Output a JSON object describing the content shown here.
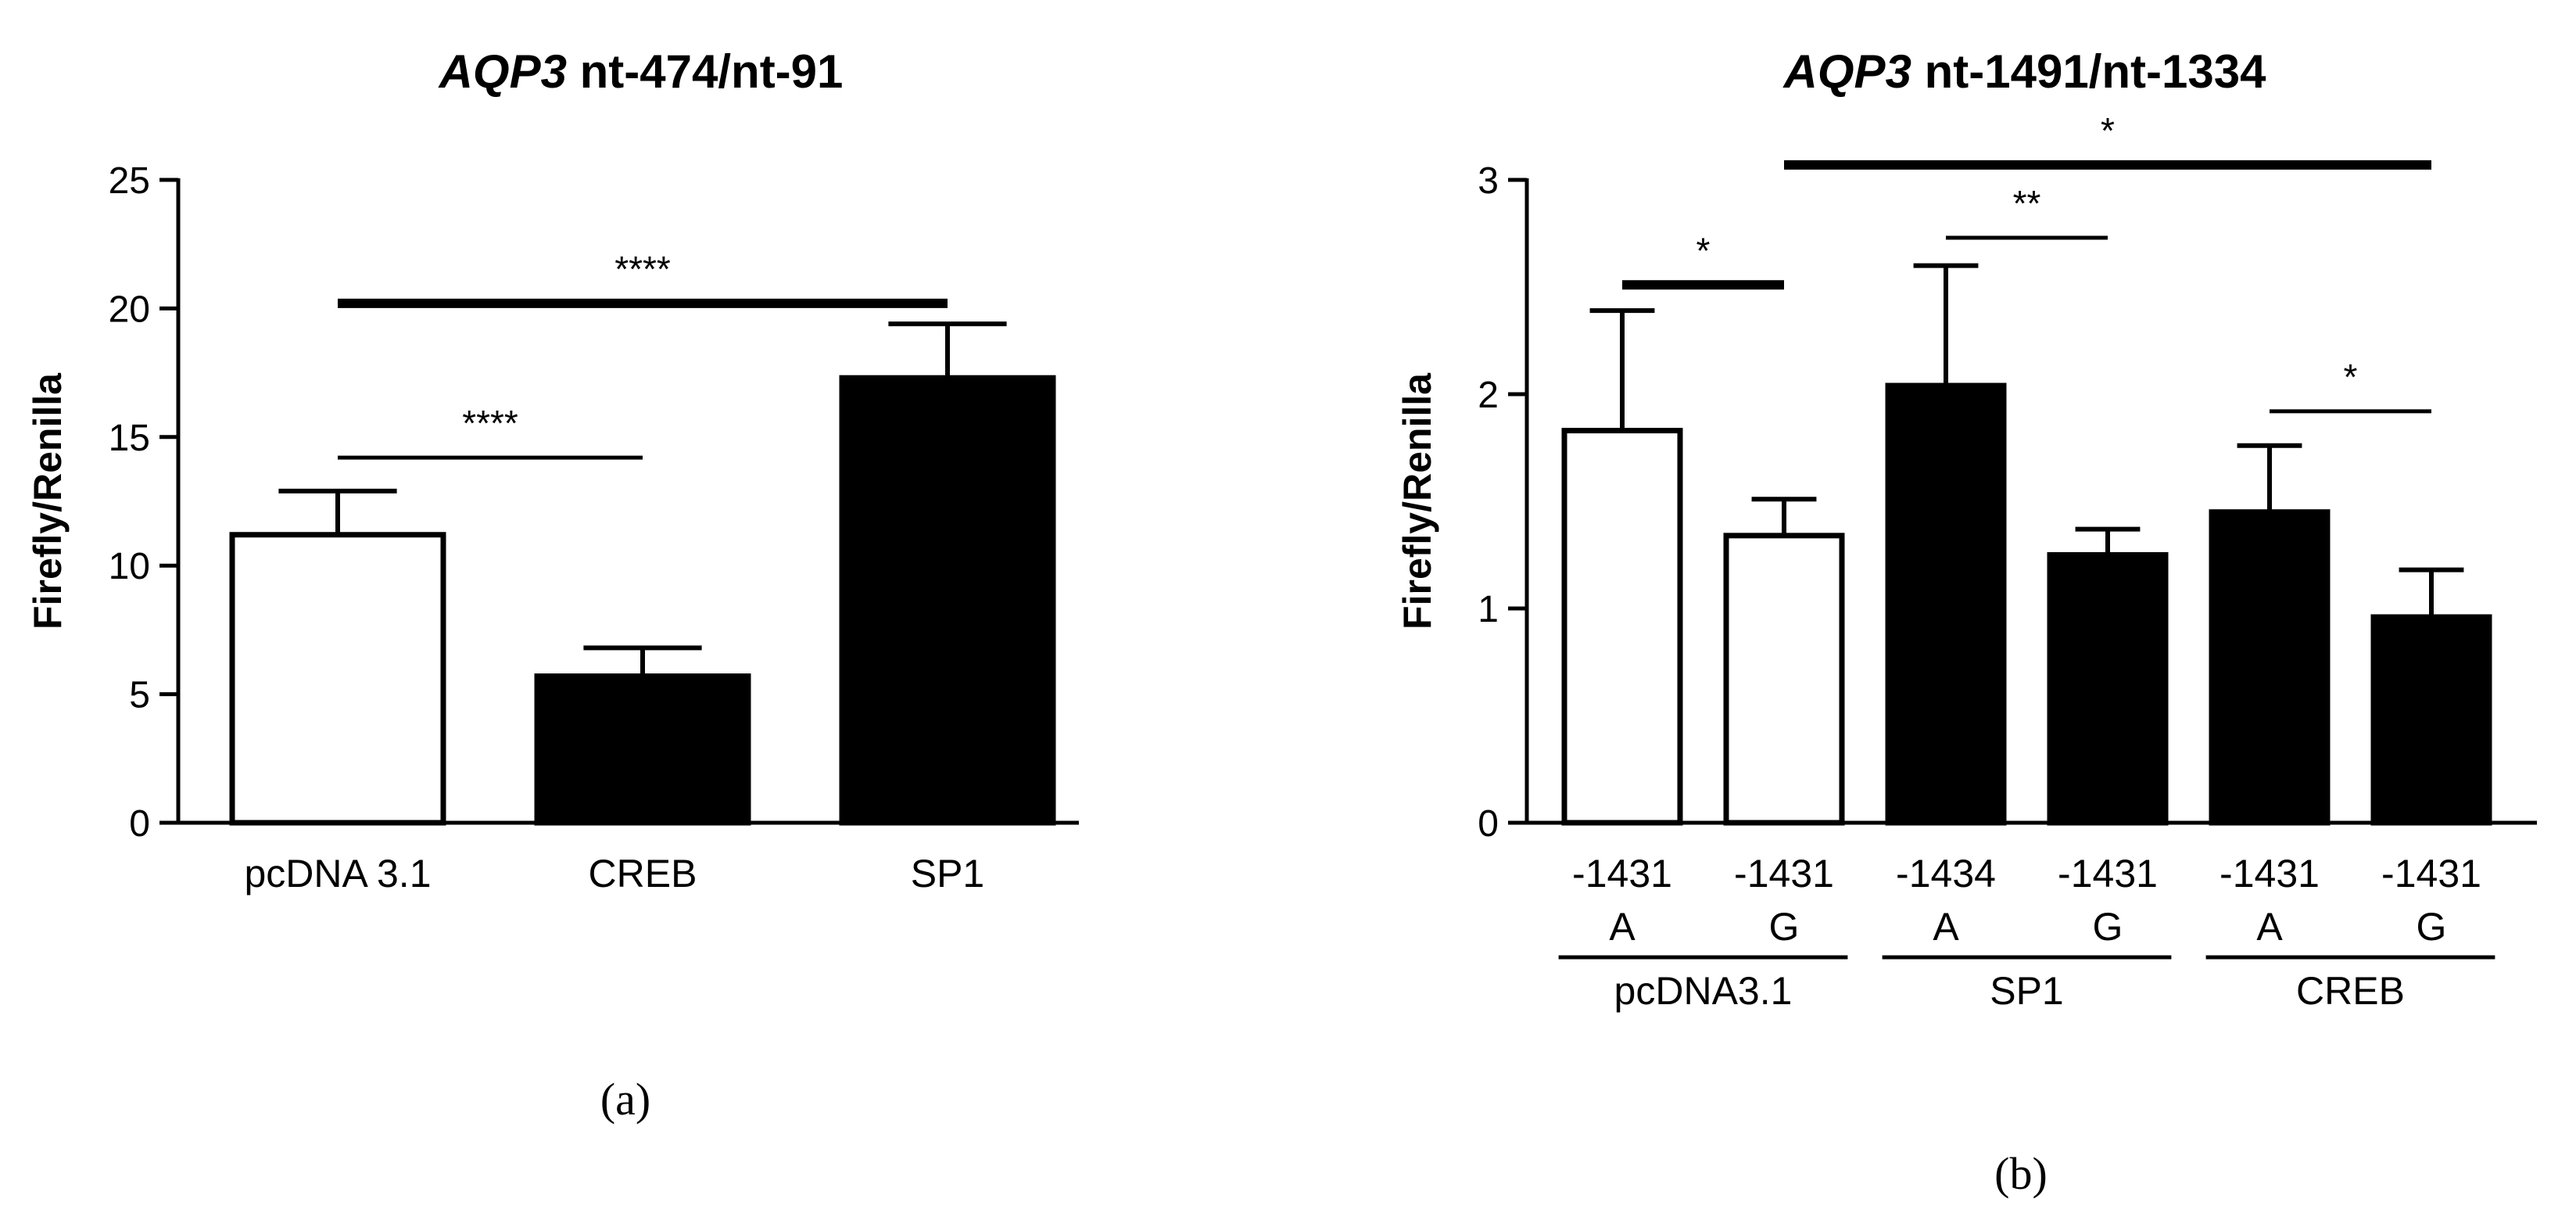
{
  "chart_data": [
    {
      "id": "a",
      "panel_label": "(a)",
      "type": "bar",
      "title_italic": "AQP3",
      "title_rest": " nt-474/nt-91",
      "ylabel": "Firefly/Renilla",
      "ylim": [
        0,
        25
      ],
      "yticks": [
        "0",
        "5",
        "10",
        "15",
        "20",
        "25"
      ],
      "categories": [
        "pcDNA 3.1",
        "CREB",
        "SP1"
      ],
      "values": [
        11.2,
        5.7,
        17.3
      ],
      "errors": [
        1.7,
        1.1,
        2.1
      ],
      "fills": [
        "white",
        "black",
        "black"
      ],
      "significance": [
        {
          "from": 0,
          "to": 1,
          "y": 14.2,
          "label": "****",
          "thick": false
        },
        {
          "from": 0,
          "to": 2,
          "y": 20.2,
          "label": "****",
          "thick": true
        }
      ]
    },
    {
      "id": "b",
      "panel_label": "(b)",
      "type": "bar",
      "title_italic": "AQP3",
      "title_rest": " nt-1491/nt-1334",
      "ylabel": "Firefly/Renilla",
      "ylim": [
        0,
        3
      ],
      "yticks": [
        "0",
        "1",
        "2",
        "3"
      ],
      "categories": [
        {
          "top": "-1431",
          "bottom": "A"
        },
        {
          "top": "-1431",
          "bottom": "G"
        },
        {
          "top": "-1434",
          "bottom": "A"
        },
        {
          "top": "-1431",
          "bottom": "G"
        },
        {
          "top": "-1431",
          "bottom": "A"
        },
        {
          "top": "-1431",
          "bottom": "G"
        }
      ],
      "values": [
        1.83,
        1.34,
        2.04,
        1.25,
        1.45,
        0.96
      ],
      "errors": [
        0.56,
        0.17,
        0.56,
        0.12,
        0.31,
        0.22
      ],
      "fills": [
        "white",
        "white",
        "black",
        "black",
        "black",
        "black"
      ],
      "groups": [
        {
          "label": "pcDNA3.1",
          "from": 0,
          "to": 1
        },
        {
          "label": "SP1",
          "from": 2,
          "to": 3
        },
        {
          "label": "CREB",
          "from": 4,
          "to": 5
        }
      ],
      "significance": [
        {
          "from": 0,
          "to": 1,
          "y": 2.51,
          "label": "*",
          "thick": true
        },
        {
          "from": 2,
          "to": 3,
          "y": 2.73,
          "label": "**",
          "thick": false
        },
        {
          "from": 4,
          "to": 5,
          "y": 1.92,
          "label": "*",
          "thick": false
        },
        {
          "from": 1,
          "to": 5,
          "y": 3.07,
          "label": "*",
          "thick": true
        }
      ]
    }
  ]
}
